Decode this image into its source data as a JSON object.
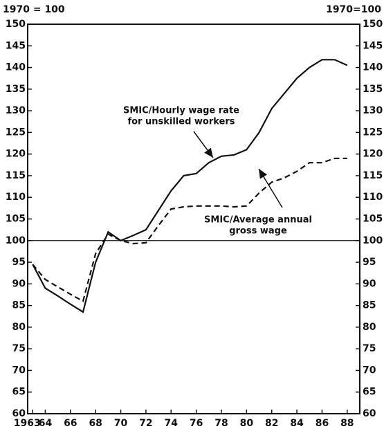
{
  "chart_data": {
    "type": "line",
    "y_unit_label": "1970 = 100",
    "y2_unit_label": "1970=100",
    "x": [
      1963,
      1964,
      1965,
      1966,
      1967,
      1968,
      1969,
      1970,
      1971,
      1972,
      1973,
      1974,
      1975,
      1976,
      1977,
      1978,
      1979,
      1980,
      1981,
      1982,
      1983,
      1984,
      1985,
      1986,
      1987,
      1988
    ],
    "series": [
      {
        "color": "#111111",
        "dash": "solid",
        "values": [
          94.5,
          89,
          87.2,
          85.3,
          83.5,
          95,
          102,
          100,
          101.2,
          102.5,
          107,
          111.5,
          115,
          115.5,
          118,
          119.5,
          119.8,
          121,
          125,
          130.5,
          134,
          137.5,
          140,
          141.8,
          141.8,
          140.5
        ]
      },
      {
        "color": "#111111",
        "dash": "dashed",
        "values": [
          94.5,
          91,
          89.3,
          87.6,
          86,
          97,
          101.5,
          100,
          99.3,
          99.5,
          103.5,
          107.3,
          107.8,
          108,
          108,
          108,
          107.8,
          108,
          111,
          113.5,
          114.5,
          116,
          118,
          118,
          119,
          119
        ]
      }
    ],
    "annotations": [
      {
        "lines": [
          "SMIC/Hourly wage rate",
          "for unskilled workers"
        ]
      },
      {
        "lines": [
          "SMIC/Average annual",
          "gross wage"
        ]
      }
    ],
    "xlim": [
      1962.6,
      1989
    ],
    "xticks": [
      1963,
      {
        "value": 1964,
        "label": "64"
      },
      {
        "value": 1966,
        "label": "66"
      },
      {
        "value": 1968,
        "label": "68"
      },
      {
        "value": 1970,
        "label": "70"
      },
      {
        "value": 1972,
        "label": "72"
      },
      {
        "value": 1974,
        "label": "74"
      },
      {
        "value": 1976,
        "label": "76"
      },
      {
        "value": 1978,
        "label": "78"
      },
      {
        "value": 1980,
        "label": "80"
      },
      {
        "value": 1982,
        "label": "82"
      },
      {
        "value": 1984,
        "label": "84"
      },
      {
        "value": 1986,
        "label": "86"
      },
      {
        "value": 1988,
        "label": "88"
      }
    ],
    "ylim": [
      60,
      150
    ],
    "yticks": [
      60,
      65,
      70,
      75,
      80,
      85,
      90,
      95,
      100,
      105,
      110,
      115,
      120,
      125,
      130,
      135,
      140,
      145,
      150
    ],
    "y2lim": [
      60,
      150
    ],
    "y2ticks": [
      60,
      65,
      70,
      75,
      80,
      85,
      90,
      95,
      100,
      105,
      110,
      115,
      120,
      125,
      130,
      135,
      140,
      145,
      150
    ],
    "reference_line": 100,
    "grid": false
  }
}
